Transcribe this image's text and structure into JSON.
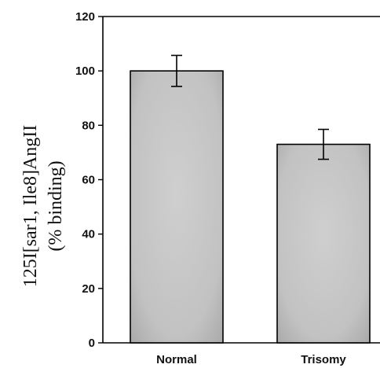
{
  "chart_data": {
    "type": "bar",
    "categories": [
      "Normal",
      "Trisomy"
    ],
    "values": [
      100,
      73
    ],
    "errors": [
      5.7,
      5.5
    ],
    "ylabel_lines": [
      "125I[sar1, Ile8]AngII",
      "(% binding)"
    ],
    "xlabel": "",
    "title": "",
    "ylim": [
      0,
      120
    ],
    "yticks": [
      0,
      20,
      40,
      60,
      80,
      100,
      120
    ],
    "grid": false,
    "legend": "none",
    "bar_color": "#c8c8c8",
    "edge_color": "#000000"
  }
}
